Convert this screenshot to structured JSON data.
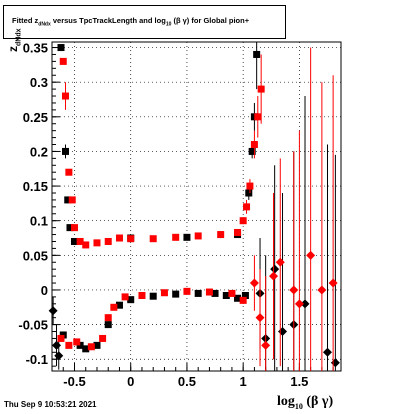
{
  "title": {
    "prefix": "Fitted",
    "sym": "z",
    "sub": "dNdx",
    "mid": "versus TpcTrackLength and log",
    "log_sub": "10",
    "beta_gamma": "(β γ)",
    "suffix": "for Global pion+"
  },
  "ylabel": {
    "main": "z",
    "sub": "dNdx"
  },
  "xlabel": {
    "main": "log",
    "sub": "10",
    "tail": "(β γ)"
  },
  "timestamp": "Thu Sep  9 10:53:21 2021",
  "colors": {
    "black_series": "#000000",
    "red_series": "#ff0000",
    "grid": "#000000"
  },
  "chart_data": {
    "type": "scatter",
    "grid": true,
    "xlim": [
      -0.7,
      1.87
    ],
    "ylim": [
      -0.117,
      0.358
    ],
    "xticks": [
      -0.5,
      0,
      0.5,
      1,
      1.5
    ],
    "xtick_labels": [
      "-0.5",
      "0",
      "0.5",
      "1",
      "1.5"
    ],
    "yticks": [
      -0.1,
      -0.05,
      0,
      0.05,
      0.1,
      0.15,
      0.2,
      0.25,
      0.3,
      0.35
    ],
    "ytick_labels": [
      "-0.1",
      "-0.05",
      "0",
      "0.05",
      "0.1",
      "0.15",
      "0.2",
      "0.25",
      "0.3",
      "0.35"
    ],
    "series": [
      {
        "color": "black",
        "points": [
          {
            "x": -0.69,
            "y": -0.03,
            "err": 0.02,
            "m": "diamond"
          },
          {
            "x": -0.66,
            "y": -0.08,
            "err": 0.03,
            "m": "diamond"
          },
          {
            "x": -0.64,
            "y": -0.095,
            "err": 0.02,
            "m": "diamond"
          },
          {
            "x": -0.62,
            "y": 0.35,
            "err": 0.0,
            "m": "square"
          },
          {
            "x": -0.6,
            "y": -0.065,
            "err": 0.0,
            "m": "square"
          },
          {
            "x": -0.58,
            "y": 0.2,
            "err": 0.01,
            "m": "square"
          },
          {
            "x": -0.56,
            "y": 0.13,
            "err": 0.0,
            "m": "square"
          },
          {
            "x": -0.54,
            "y": 0.09,
            "err": 0.0,
            "m": "square"
          },
          {
            "x": -0.5,
            "y": 0.07,
            "err": 0.0,
            "m": "square"
          },
          {
            "x": -0.45,
            "y": -0.08,
            "err": 0.0,
            "m": "square"
          },
          {
            "x": -0.4,
            "y": -0.085,
            "err": 0.0,
            "m": "square"
          },
          {
            "x": -0.3,
            "y": -0.08,
            "err": 0.0,
            "m": "square"
          },
          {
            "x": -0.2,
            "y": -0.05,
            "err": 0.0,
            "m": "square"
          },
          {
            "x": -0.1,
            "y": -0.022,
            "err": 0.0,
            "m": "square"
          },
          {
            "x": 0.0,
            "y": -0.014,
            "err": 0.0,
            "m": "square"
          },
          {
            "x": 0.2,
            "y": -0.009,
            "err": 0.0,
            "m": "square"
          },
          {
            "x": 0.4,
            "y": -0.006,
            "err": 0.0,
            "m": "square"
          },
          {
            "x": 0.6,
            "y": -0.005,
            "err": 0.0,
            "m": "square"
          },
          {
            "x": 0.75,
            "y": -0.005,
            "err": 0.0,
            "m": "square"
          },
          {
            "x": 0.85,
            "y": -0.008,
            "err": 0.0,
            "m": "square"
          },
          {
            "x": 0.95,
            "y": -0.012,
            "err": 0.0,
            "m": "square"
          },
          {
            "x": 1.02,
            "y": -0.008,
            "err": 0.004,
            "m": "square"
          },
          {
            "x": 0.0,
            "y": 0.075,
            "err": 0.0,
            "m": "square"
          },
          {
            "x": 0.5,
            "y": 0.076,
            "err": 0.0,
            "m": "square"
          },
          {
            "x": 0.95,
            "y": 0.08,
            "err": 0.0,
            "m": "square"
          },
          {
            "x": 1.05,
            "y": 0.14,
            "err": 0.01,
            "m": "square"
          },
          {
            "x": 1.08,
            "y": 0.2,
            "err": 0.01,
            "m": "square"
          },
          {
            "x": 1.1,
            "y": 0.25,
            "err": 0.02,
            "m": "square"
          },
          {
            "x": 1.12,
            "y": 0.34,
            "err": 0.05,
            "m": "square"
          },
          {
            "x": 1.15,
            "y": -0.005,
            "err": 0.08,
            "m": "diamond"
          },
          {
            "x": 1.2,
            "y": -0.07,
            "err": 0.12,
            "m": "diamond"
          },
          {
            "x": 1.28,
            "y": 0.03,
            "err": 0.15,
            "m": "diamond"
          },
          {
            "x": 1.35,
            "y": -0.06,
            "err": 0.2,
            "m": "diamond"
          },
          {
            "x": 1.45,
            "y": -0.05,
            "err": 0.25,
            "m": "diamond"
          },
          {
            "x": 1.55,
            "y": -0.02,
            "err": 0.3,
            "m": "diamond"
          },
          {
            "x": 1.75,
            "y": -0.09,
            "err": 0.3,
            "m": "diamond"
          },
          {
            "x": 1.82,
            "y": -0.105,
            "err": 0.3,
            "m": "diamond"
          }
        ]
      },
      {
        "color": "red",
        "points": [
          {
            "x": -0.6,
            "y": 0.33,
            "err": 0.0,
            "m": "square"
          },
          {
            "x": -0.58,
            "y": 0.28,
            "err": 0.02,
            "m": "square"
          },
          {
            "x": -0.55,
            "y": 0.17,
            "err": 0.0,
            "m": "square"
          },
          {
            "x": -0.52,
            "y": 0.13,
            "err": 0.0,
            "m": "square"
          },
          {
            "x": -0.5,
            "y": 0.09,
            "err": 0.0,
            "m": "square"
          },
          {
            "x": -0.45,
            "y": 0.07,
            "err": 0.0,
            "m": "square"
          },
          {
            "x": -0.4,
            "y": 0.065,
            "err": 0.0,
            "m": "square"
          },
          {
            "x": -0.3,
            "y": 0.068,
            "err": 0.0,
            "m": "square"
          },
          {
            "x": -0.2,
            "y": 0.07,
            "err": 0.0,
            "m": "square"
          },
          {
            "x": -0.1,
            "y": 0.075,
            "err": 0.0,
            "m": "square"
          },
          {
            "x": 0.0,
            "y": 0.074,
            "err": 0.0,
            "m": "square"
          },
          {
            "x": 0.2,
            "y": 0.074,
            "err": 0.0,
            "m": "square"
          },
          {
            "x": 0.4,
            "y": 0.076,
            "err": 0.0,
            "m": "square"
          },
          {
            "x": 0.6,
            "y": 0.078,
            "err": 0.0,
            "m": "square"
          },
          {
            "x": 0.8,
            "y": 0.08,
            "err": 0.0,
            "m": "square"
          },
          {
            "x": 0.95,
            "y": 0.083,
            "err": 0.0,
            "m": "square"
          },
          {
            "x": 1.0,
            "y": 0.1,
            "err": 0.005,
            "m": "square"
          },
          {
            "x": 1.03,
            "y": 0.12,
            "err": 0.01,
            "m": "square"
          },
          {
            "x": 1.06,
            "y": 0.15,
            "err": 0.01,
            "m": "square"
          },
          {
            "x": 1.1,
            "y": 0.21,
            "err": 0.02,
            "m": "square"
          },
          {
            "x": 1.13,
            "y": 0.25,
            "err": 0.03,
            "m": "square"
          },
          {
            "x": 1.16,
            "y": 0.29,
            "err": 0.05,
            "m": "square"
          },
          {
            "x": -0.62,
            "y": -0.07,
            "err": 0.0,
            "m": "square"
          },
          {
            "x": -0.55,
            "y": -0.08,
            "err": 0.0,
            "m": "square"
          },
          {
            "x": -0.48,
            "y": -0.075,
            "err": 0.0,
            "m": "square"
          },
          {
            "x": -0.35,
            "y": -0.082,
            "err": 0.0,
            "m": "square"
          },
          {
            "x": -0.25,
            "y": -0.07,
            "err": 0.0,
            "m": "square"
          },
          {
            "x": -0.2,
            "y": -0.04,
            "err": 0.0,
            "m": "square"
          },
          {
            "x": -0.15,
            "y": -0.025,
            "err": 0.0,
            "m": "square"
          },
          {
            "x": -0.05,
            "y": -0.01,
            "err": 0.0,
            "m": "square"
          },
          {
            "x": 0.1,
            "y": -0.008,
            "err": 0.0,
            "m": "square"
          },
          {
            "x": 0.3,
            "y": -0.004,
            "err": 0.0,
            "m": "square"
          },
          {
            "x": 0.5,
            "y": -0.002,
            "err": 0.0,
            "m": "square"
          },
          {
            "x": 0.7,
            "y": -0.003,
            "err": 0.0,
            "m": "square"
          },
          {
            "x": 0.9,
            "y": -0.005,
            "err": 0.0,
            "m": "square"
          },
          {
            "x": 1.0,
            "y": -0.015,
            "err": 0.005,
            "m": "square"
          },
          {
            "x": 1.1,
            "y": 0.01,
            "err": 0.04,
            "m": "diamond"
          },
          {
            "x": 1.15,
            "y": -0.04,
            "err": 0.07,
            "m": "diamond"
          },
          {
            "x": 1.2,
            "y": -0.08,
            "err": 0.1,
            "m": "diamond"
          },
          {
            "x": 1.27,
            "y": 0.02,
            "err": 0.12,
            "m": "diamond"
          },
          {
            "x": 1.33,
            "y": 0.04,
            "err": 0.15,
            "m": "diamond"
          },
          {
            "x": 1.45,
            "y": 0.0,
            "err": 0.2,
            "m": "diamond"
          },
          {
            "x": 1.5,
            "y": -0.02,
            "err": 0.25,
            "m": "diamond"
          },
          {
            "x": 1.6,
            "y": 0.05,
            "err": 0.3,
            "m": "diamond"
          },
          {
            "x": 1.7,
            "y": 0.0,
            "err": 0.3,
            "m": "diamond"
          },
          {
            "x": 1.8,
            "y": 0.01,
            "err": 0.3,
            "m": "diamond"
          }
        ]
      }
    ]
  }
}
